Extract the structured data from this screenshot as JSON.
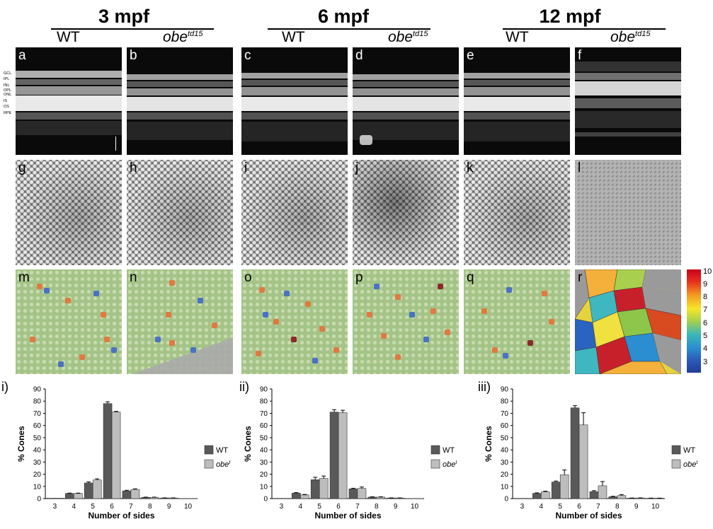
{
  "groups": [
    {
      "title": "3 mpf",
      "wt": "WT",
      "mut": "obe",
      "mut_sup": "td15"
    },
    {
      "title": "6 mpf",
      "wt": "WT",
      "mut": "obe",
      "mut_sup": "td15"
    },
    {
      "title": "12 mpf",
      "wt": "WT",
      "mut": "obe",
      "mut_sup": "td15"
    }
  ],
  "oct_layers": [
    "GCL",
    "IPL",
    "INL",
    "OPL",
    "ONL",
    "IS",
    "OS",
    "RPE"
  ],
  "panel_letters": {
    "oct": [
      "a",
      "b",
      "c",
      "d",
      "e",
      "f"
    ],
    "mosaic": [
      "g",
      "h",
      "i",
      "j",
      "k",
      "l"
    ],
    "voronoi": [
      "m",
      "n",
      "o",
      "p",
      "q",
      "r"
    ]
  },
  "colorbar": {
    "ticks": [
      "10",
      "9",
      "8",
      "7",
      "6",
      "5",
      "4",
      "3"
    ]
  },
  "chart_data": [
    {
      "type": "bar",
      "panel": "i)",
      "title": "",
      "xlabel": "Number of sides",
      "ylabel": "% Cones",
      "ylim": [
        0,
        90
      ],
      "yticks": [
        0,
        10,
        20,
        30,
        40,
        50,
        60,
        70,
        80,
        90
      ],
      "categories": [
        "3",
        "4",
        "5",
        "6",
        "7",
        "8",
        "9",
        "10"
      ],
      "series": [
        {
          "name": "WT",
          "sup": "",
          "color": "#595959",
          "values": [
            0.3,
            4.2,
            12.8,
            78,
            6.3,
            1,
            0.5,
            0.1
          ],
          "errors": [
            0,
            0.3,
            0.9,
            1.5,
            0.5,
            0.2,
            0.1,
            0
          ]
        },
        {
          "name": "obe",
          "sup": "td15",
          "color": "#bdbdbd",
          "values": [
            0.3,
            4.2,
            15.3,
            71,
            7.5,
            1,
            0.5,
            0.1
          ],
          "errors": [
            0,
            0.3,
            0.9,
            0.6,
            0.5,
            0.2,
            0.1,
            0
          ]
        }
      ]
    },
    {
      "type": "bar",
      "panel": "ii)",
      "title": "",
      "xlabel": "Number of sides",
      "ylabel": "% Cones",
      "ylim": [
        0,
        90
      ],
      "yticks": [
        0,
        10,
        20,
        30,
        40,
        50,
        60,
        70,
        80,
        90
      ],
      "categories": [
        "3",
        "4",
        "5",
        "6",
        "7",
        "8",
        "9",
        "10"
      ],
      "series": [
        {
          "name": "WT",
          "sup": "",
          "color": "#595959",
          "values": [
            0.2,
            4.5,
            15.5,
            71,
            8,
            1.2,
            0.5,
            0.1
          ],
          "errors": [
            0,
            0.4,
            2,
            2,
            0.5,
            0.3,
            0.1,
            0
          ]
        },
        {
          "name": "obe",
          "sup": "td15",
          "color": "#bdbdbd",
          "values": [
            0.2,
            3,
            16.5,
            70.5,
            8.3,
            1.2,
            0.5,
            0.1
          ],
          "errors": [
            0,
            0.4,
            2,
            2,
            1.2,
            0.3,
            0.1,
            0
          ]
        }
      ]
    },
    {
      "type": "bar",
      "panel": "iii)",
      "title": "",
      "xlabel": "Number of sides",
      "ylabel": "% Cones",
      "ylim": [
        0,
        90
      ],
      "yticks": [
        0,
        10,
        20,
        30,
        40,
        50,
        60,
        70,
        80,
        90
      ],
      "categories": [
        "3",
        "4",
        "5",
        "6",
        "7",
        "8",
        "9",
        "10"
      ],
      "series": [
        {
          "name": "WT",
          "sup": "",
          "color": "#595959",
          "values": [
            0.2,
            4.3,
            13.6,
            74.5,
            5.7,
            1.5,
            0.4,
            0.3
          ],
          "errors": [
            0,
            0.4,
            0.8,
            1.8,
            0.8,
            0.4,
            0.1,
            0.1
          ]
        },
        {
          "name": "obe",
          "sup": "td15",
          "color": "#bdbdbd",
          "values": [
            0.2,
            5.5,
            19.5,
            60.5,
            10.5,
            2.5,
            0.5,
            0.3
          ],
          "errors": [
            0,
            0.6,
            4,
            10,
            3.5,
            0.8,
            0.1,
            0.1
          ]
        }
      ]
    }
  ]
}
